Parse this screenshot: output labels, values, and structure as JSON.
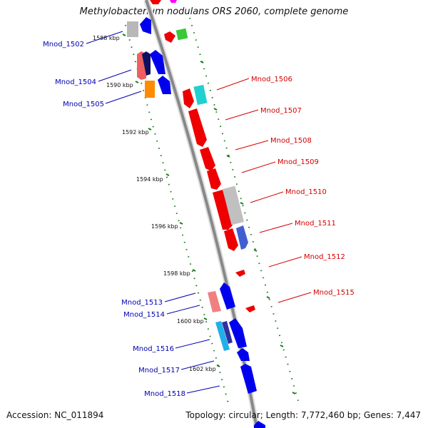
{
  "title": "Methylobacterium nodulans ORS 2060, complete genome",
  "accession": "Accession: NC_011894",
  "topology": "Topology: circular; Length: 7,772,460 bp; Genes: 7,447",
  "kbp_ticks": [
    "1588 kbp",
    "1590 kbp",
    "1592 kbp",
    "1594 kbp",
    "1596 kbp",
    "1598 kbp",
    "1600 kbp",
    "1602 kbp"
  ],
  "colors": {
    "forward_label": "#d40000",
    "reverse_label": "#0000b0",
    "backbone": "#888888",
    "tick": "#1a7a1a"
  },
  "genes_forward": [
    {
      "name": "Mnod_1506"
    },
    {
      "name": "Mnod_1507"
    },
    {
      "name": "Mnod_1508"
    },
    {
      "name": "Mnod_1509"
    },
    {
      "name": "Mnod_1510"
    },
    {
      "name": "Mnod_1511"
    },
    {
      "name": "Mnod_1512"
    },
    {
      "name": "Mnod_1515"
    }
  ],
  "genes_reverse": [
    {
      "name": "Mnod_1502"
    },
    {
      "name": "Mnod_1504"
    },
    {
      "name": "Mnod_1505"
    },
    {
      "name": "Mnod_1513"
    },
    {
      "name": "Mnod_1514"
    },
    {
      "name": "Mnod_1516"
    },
    {
      "name": "Mnod_1517"
    },
    {
      "name": "Mnod_1518"
    }
  ]
}
